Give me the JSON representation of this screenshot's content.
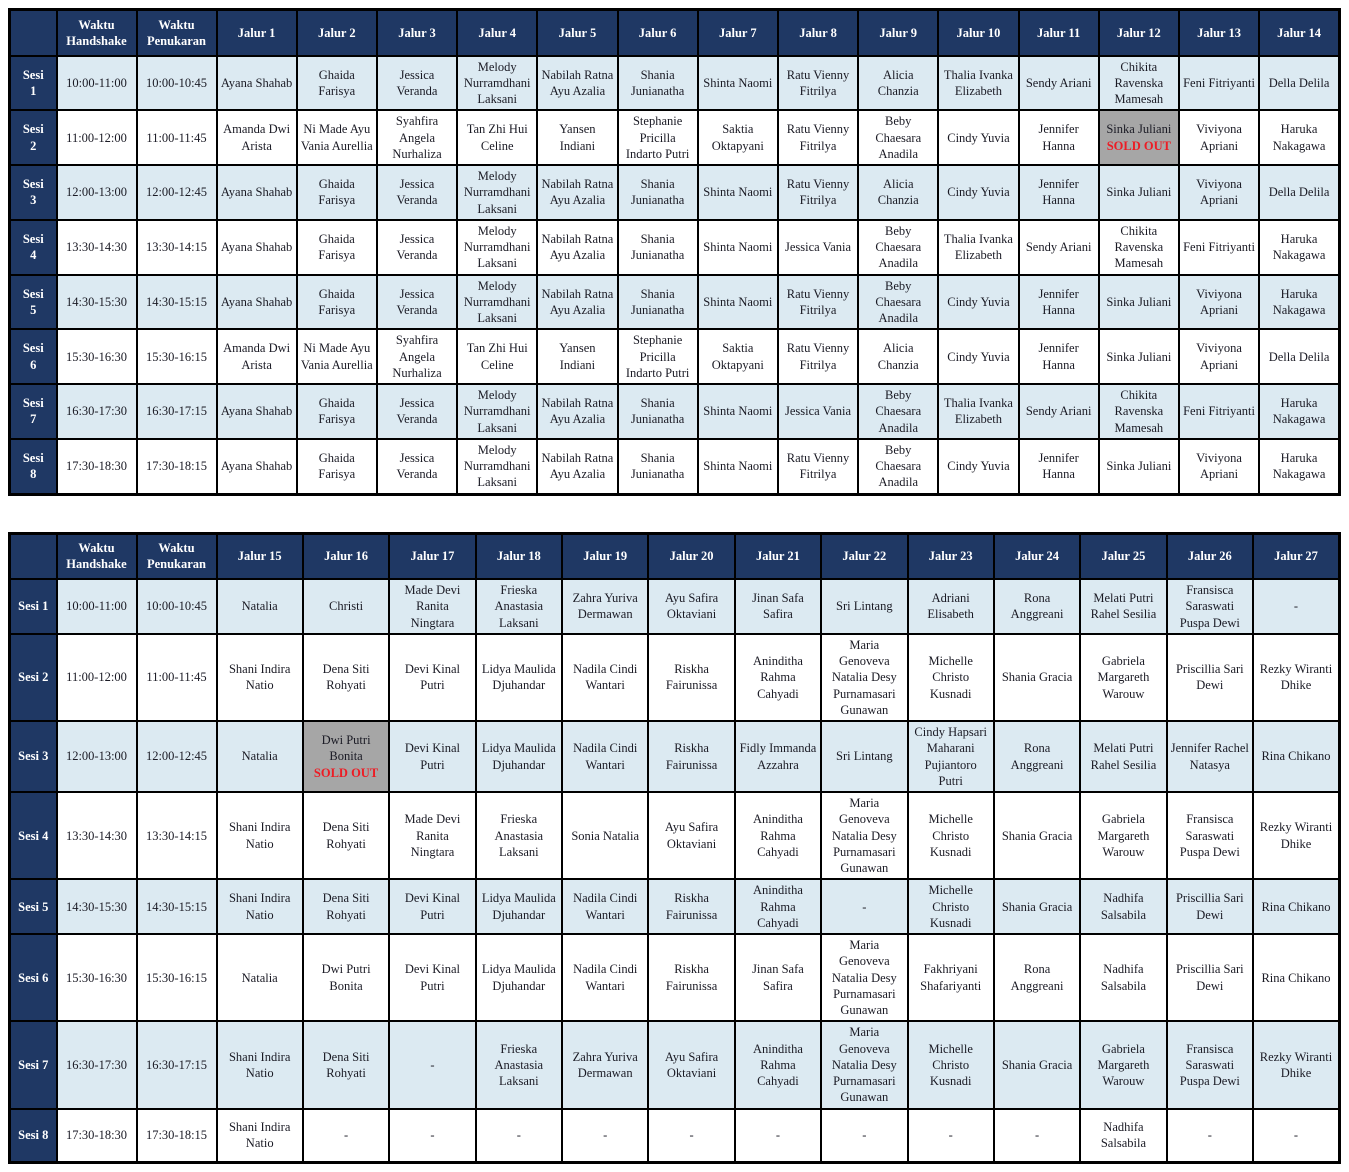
{
  "sold_out_label": "SOLD OUT",
  "colors": {
    "header_bg": "#1F3864",
    "header_text": "#FFFFFF",
    "alt_row_bg": "#DCEAF2",
    "row_bg": "#FFFFFF",
    "border": "#000000",
    "cell_text": "#1A1A24",
    "sold_out_bg": "#A6A6A6",
    "sold_out_text": "#ED1C24"
  },
  "tables": [
    {
      "id": "jalur-1-14",
      "headers": [
        "Waktu Handshake",
        "Waktu Penukaran",
        "Jalur 1",
        "Jalur 2",
        "Jalur 3",
        "Jalur 4",
        "Jalur 5",
        "Jalur 6",
        "Jalur 7",
        "Jalur 8",
        "Jalur 9",
        "Jalur 10",
        "Jalur 11",
        "Jalur 12",
        "Jalur 13",
        "Jalur 14"
      ],
      "rows": [
        {
          "session_lines": [
            "Sesi",
            "1"
          ],
          "handshake_time": "10:00-11:00",
          "exchange_time": "10:00-10:45",
          "members": [
            "Ayana Shahab",
            "Ghaida Farisya",
            "Jessica Veranda",
            "Melody Nurramdhani Laksani",
            "Nabilah Ratna Ayu Azalia",
            "Shania Junianatha",
            "Shinta Naomi",
            "Ratu Vienny Fitrilya",
            "Alicia Chanzia",
            "Thalia Ivanka Elizabeth",
            "Sendy Ariani",
            "Chikita Ravenska Mamesah",
            "Feni Fitriyanti",
            "Della Delila"
          ]
        },
        {
          "session_lines": [
            "Sesi",
            "2"
          ],
          "handshake_time": "11:00-12:00",
          "exchange_time": "11:00-11:45",
          "members": [
            "Amanda Dwi Arista",
            "Ni Made Ayu Vania Aurellia",
            "Syahfira Angela Nurhaliza",
            "Tan Zhi Hui Celine",
            "Yansen Indiani",
            "Stephanie Pricilla Indarto Putri",
            "Saktia Oktapyani",
            "Ratu Vienny Fitrilya",
            "Beby Chaesara Anadila",
            "Cindy Yuvia",
            "Jennifer Hanna",
            {
              "name": "Sinka Juliani",
              "sold_out": true
            },
            "Viviyona Apriani",
            "Haruka Nakagawa"
          ]
        },
        {
          "session_lines": [
            "Sesi",
            "3"
          ],
          "handshake_time": "12:00-13:00",
          "exchange_time": "12:00-12:45",
          "members": [
            "Ayana Shahab",
            "Ghaida Farisya",
            "Jessica Veranda",
            "Melody Nurramdhani Laksani",
            "Nabilah Ratna Ayu Azalia",
            "Shania Junianatha",
            "Shinta Naomi",
            "Ratu Vienny Fitrilya",
            "Alicia Chanzia",
            "Cindy Yuvia",
            "Jennifer Hanna",
            "Sinka Juliani",
            "Viviyona Apriani",
            "Della Delila"
          ]
        },
        {
          "session_lines": [
            "Sesi",
            "4"
          ],
          "handshake_time": "13:30-14:30",
          "exchange_time": "13:30-14:15",
          "members": [
            "Ayana Shahab",
            "Ghaida Farisya",
            "Jessica Veranda",
            "Melody Nurramdhani Laksani",
            "Nabilah Ratna Ayu Azalia",
            "Shania Junianatha",
            "Shinta Naomi",
            "Jessica Vania",
            "Beby Chaesara Anadila",
            "Thalia Ivanka Elizabeth",
            "Sendy Ariani",
            "Chikita Ravenska Mamesah",
            "Feni Fitriyanti",
            "Haruka Nakagawa"
          ]
        },
        {
          "session_lines": [
            "Sesi",
            "5"
          ],
          "handshake_time": "14:30-15:30",
          "exchange_time": "14:30-15:15",
          "members": [
            "Ayana Shahab",
            "Ghaida Farisya",
            "Jessica Veranda",
            "Melody Nurramdhani Laksani",
            "Nabilah Ratna Ayu Azalia",
            "Shania Junianatha",
            "Shinta Naomi",
            "Ratu Vienny Fitrilya",
            "Beby Chaesara Anadila",
            "Cindy Yuvia",
            "Jennifer Hanna",
            "Sinka Juliani",
            "Viviyona Apriani",
            "Haruka Nakagawa"
          ]
        },
        {
          "session_lines": [
            "Sesi",
            "6"
          ],
          "handshake_time": "15:30-16:30",
          "exchange_time": "15:30-16:15",
          "members": [
            "Amanda Dwi Arista",
            "Ni Made Ayu Vania Aurellia",
            "Syahfira Angela Nurhaliza",
            "Tan Zhi Hui Celine",
            "Yansen Indiani",
            "Stephanie Pricilla Indarto Putri",
            "Saktia Oktapyani",
            "Ratu Vienny Fitrilya",
            "Alicia Chanzia",
            "Cindy Yuvia",
            "Jennifer Hanna",
            "Sinka Juliani",
            "Viviyona Apriani",
            "Della Delila"
          ]
        },
        {
          "session_lines": [
            "Sesi",
            "7"
          ],
          "handshake_time": "16:30-17:30",
          "exchange_time": "16:30-17:15",
          "members": [
            "Ayana Shahab",
            "Ghaida Farisya",
            "Jessica Veranda",
            "Melody Nurramdhani Laksani",
            "Nabilah Ratna Ayu Azalia",
            "Shania Junianatha",
            "Shinta Naomi",
            "Jessica Vania",
            "Beby Chaesara Anadila",
            "Thalia Ivanka Elizabeth",
            "Sendy Ariani",
            "Chikita Ravenska Mamesah",
            "Feni Fitriyanti",
            "Haruka Nakagawa"
          ]
        },
        {
          "session_lines": [
            "Sesi",
            "8"
          ],
          "handshake_time": "17:30-18:30",
          "exchange_time": "17:30-18:15",
          "members": [
            "Ayana Shahab",
            "Ghaida Farisya",
            "Jessica Veranda",
            "Melody Nurramdhani Laksani",
            "Nabilah Ratna Ayu Azalia",
            "Shania Junianatha",
            "Shinta Naomi",
            "Ratu Vienny Fitrilya",
            "Beby Chaesara Anadila",
            "Cindy Yuvia",
            "Jennifer Hanna",
            "Sinka Juliani",
            "Viviyona Apriani",
            "Haruka Nakagawa"
          ]
        }
      ]
    },
    {
      "id": "jalur-15-27",
      "headers": [
        "Waktu Handshake",
        "Waktu Penukaran",
        "Jalur 15",
        "Jalur 16",
        "Jalur 17",
        "Jalur 18",
        "Jalur 19",
        "Jalur 20",
        "Jalur 21",
        "Jalur 22",
        "Jalur 23",
        "Jalur 24",
        "Jalur 25",
        "Jalur 26",
        "Jalur 27"
      ],
      "rows": [
        {
          "session_lines": [
            "Sesi 1"
          ],
          "handshake_time": "10:00-11:00",
          "exchange_time": "10:00-10:45",
          "members": [
            "Natalia",
            "Christi",
            "Made Devi Ranita Ningtara",
            "Frieska Anastasia Laksani",
            "Zahra Yuriva Dermawan",
            "Ayu Safira Oktaviani",
            "Jinan Safa Safira",
            "Sri Lintang",
            "Adriani Elisabeth",
            "Rona Anggreani",
            "Melati Putri Rahel Sesilia",
            "Fransisca Saraswati Puspa Dewi",
            "-"
          ]
        },
        {
          "session_lines": [
            "Sesi 2"
          ],
          "handshake_time": "11:00-12:00",
          "exchange_time": "11:00-11:45",
          "members": [
            "Shani Indira Natio",
            "Dena Siti Rohyati",
            "Devi Kinal Putri",
            "Lidya Maulida Djuhandar",
            "Nadila Cindi Wantari",
            "Riskha Fairunissa",
            "Aninditha Rahma Cahyadi",
            "Maria Genoveva Natalia Desy Purnamasari Gunawan",
            "Michelle Christo Kusnadi",
            "Shania Gracia",
            "Gabriela Margareth Warouw",
            "Priscillia Sari Dewi",
            "Rezky Wiranti Dhike"
          ]
        },
        {
          "session_lines": [
            "Sesi 3"
          ],
          "handshake_time": "12:00-13:00",
          "exchange_time": "12:00-12:45",
          "members": [
            "Natalia",
            {
              "name": "Dwi Putri Bonita",
              "sold_out": true
            },
            "Devi Kinal Putri",
            "Lidya Maulida Djuhandar",
            "Nadila Cindi Wantari",
            "Riskha Fairunissa",
            "Fidly Immanda Azzahra",
            "Sri Lintang",
            "Cindy Hapsari Maharani Pujiantoro Putri",
            "Rona Anggreani",
            "Melati Putri Rahel Sesilia",
            "Jennifer Rachel Natasya",
            "Rina Chikano"
          ]
        },
        {
          "session_lines": [
            "Sesi 4"
          ],
          "handshake_time": "13:30-14:30",
          "exchange_time": "13:30-14:15",
          "members": [
            "Shani Indira Natio",
            "Dena Siti Rohyati",
            "Made Devi Ranita Ningtara",
            "Frieska Anastasia Laksani",
            "Sonia Natalia",
            "Ayu Safira Oktaviani",
            "Aninditha Rahma Cahyadi",
            "Maria Genoveva Natalia Desy Purnamasari Gunawan",
            "Michelle Christo Kusnadi",
            "Shania Gracia",
            "Gabriela Margareth Warouw",
            "Fransisca Saraswati Puspa Dewi",
            "Rezky Wiranti Dhike"
          ]
        },
        {
          "session_lines": [
            "Sesi 5"
          ],
          "handshake_time": "14:30-15:30",
          "exchange_time": "14:30-15:15",
          "members": [
            "Shani Indira Natio",
            "Dena Siti Rohyati",
            "Devi Kinal Putri",
            "Lidya Maulida Djuhandar",
            "Nadila Cindi Wantari",
            "Riskha Fairunissa",
            "Aninditha Rahma Cahyadi",
            "-",
            "Michelle Christo Kusnadi",
            "Shania Gracia",
            "Nadhifa Salsabila",
            "Priscillia Sari Dewi",
            "Rina Chikano"
          ]
        },
        {
          "session_lines": [
            "Sesi 6"
          ],
          "handshake_time": "15:30-16:30",
          "exchange_time": "15:30-16:15",
          "members": [
            "Natalia",
            "Dwi Putri Bonita",
            "Devi Kinal Putri",
            "Lidya Maulida Djuhandar",
            "Nadila Cindi Wantari",
            "Riskha Fairunissa",
            "Jinan Safa Safira",
            "Maria Genoveva Natalia Desy Purnamasari Gunawan",
            "Fakhriyani Shafariyanti",
            "Rona Anggreani",
            "Nadhifa Salsabila",
            "Priscillia Sari Dewi",
            "Rina Chikano"
          ]
        },
        {
          "session_lines": [
            "Sesi 7"
          ],
          "handshake_time": "16:30-17:30",
          "exchange_time": "16:30-17:15",
          "members": [
            "Shani Indira Natio",
            "Dena Siti Rohyati",
            "-",
            "Frieska Anastasia Laksani",
            "Zahra Yuriva Dermawan",
            "Ayu Safira Oktaviani",
            "Aninditha Rahma Cahyadi",
            "Maria Genoveva Natalia Desy Purnamasari Gunawan",
            "Michelle Christo Kusnadi",
            "Shania Gracia",
            "Gabriela Margareth Warouw",
            "Fransisca Saraswati Puspa Dewi",
            "Rezky Wiranti Dhike"
          ]
        },
        {
          "session_lines": [
            "Sesi 8"
          ],
          "handshake_time": "17:30-18:30",
          "exchange_time": "17:30-18:15",
          "members": [
            "Shani Indira Natio",
            "-",
            "-",
            "-",
            "-",
            "-",
            "-",
            "-",
            "-",
            "-",
            "Nadhifa Salsabila",
            "-",
            "-"
          ]
        }
      ]
    }
  ]
}
